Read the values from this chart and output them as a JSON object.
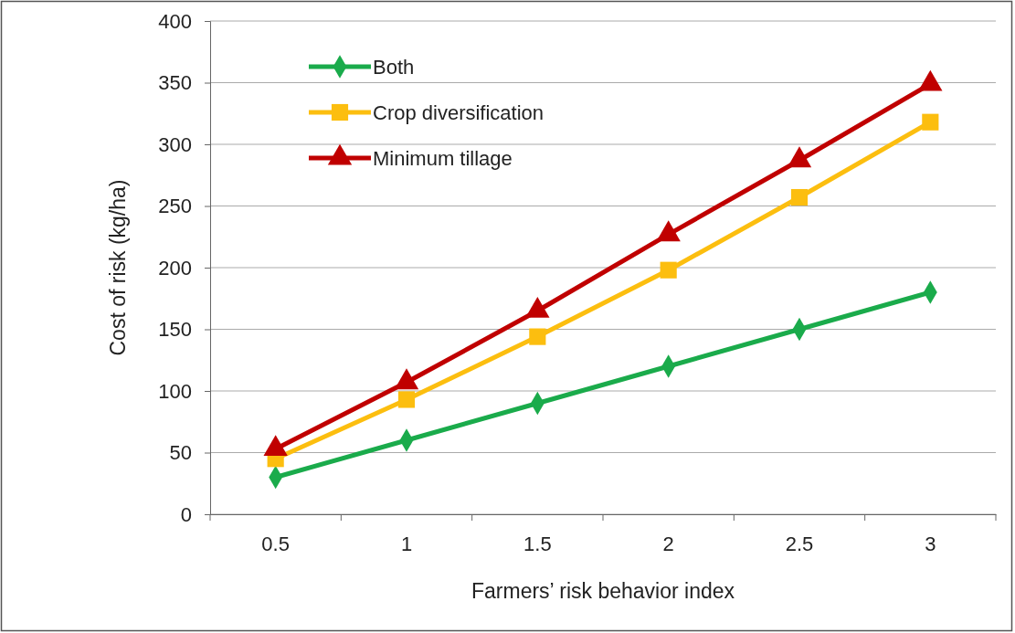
{
  "chart_data": {
    "type": "line",
    "xlabel": "Farmers’ risk behavior index",
    "ylabel": "Cost of risk (kg/ha)",
    "categories": [
      "0.5",
      "1",
      "1.5",
      "2",
      "2.5",
      "3"
    ],
    "series": [
      {
        "name": "Both",
        "color": "#1aab4b",
        "marker": "diamond",
        "values": [
          30,
          60,
          90,
          120,
          150,
          180
        ]
      },
      {
        "name": "Crop diversification",
        "color": "#fcbe0f",
        "marker": "square",
        "values": [
          45,
          93,
          144,
          198,
          257,
          318
        ]
      },
      {
        "name": "Minimum tillage",
        "color": "#c00000",
        "marker": "triangle",
        "values": [
          53,
          107,
          165,
          227,
          287,
          349
        ]
      }
    ],
    "ylim": [
      0,
      400
    ],
    "yticks": [
      0,
      50,
      100,
      150,
      200,
      250,
      300,
      350,
      400
    ],
    "grid": "y",
    "legend": "top left",
    "line_style": "solid"
  }
}
